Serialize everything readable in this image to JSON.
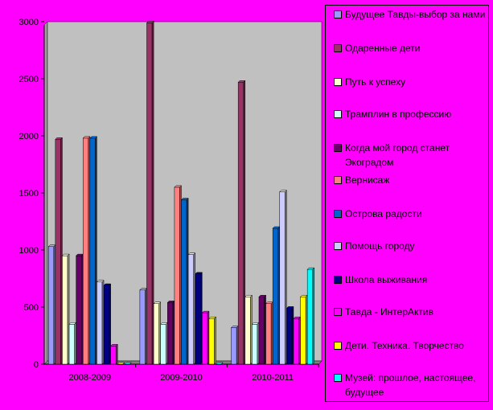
{
  "chart_data": {
    "type": "bar",
    "title": "",
    "xlabel": "",
    "ylabel": "",
    "ylim": [
      0,
      3000
    ],
    "yticks": [
      0,
      500,
      1000,
      1500,
      2000,
      2500,
      3000
    ],
    "grid": false,
    "legend_position": "right",
    "plot_background": "#c0c0c0",
    "page_background": "#ff00ff",
    "categories": [
      "2008-2009",
      "2009-2010",
      "2010-2011"
    ],
    "series": [
      {
        "name": "Будущее Тавды-выбор за нами",
        "color": "#9999ff",
        "values": [
          1030,
          650,
          320
        ]
      },
      {
        "name": "Одаренные дети",
        "color": "#993366",
        "values": [
          1970,
          2990,
          2470
        ]
      },
      {
        "name": "Путь к успеху",
        "color": "#ffffcc",
        "values": [
          950,
          530,
          590
        ]
      },
      {
        "name": "Трамплин в профессию",
        "color": "#ccffff",
        "values": [
          350,
          350,
          350
        ]
      },
      {
        "name": "Когда мой город станет Экоградом",
        "color": "#660066",
        "values": [
          950,
          540,
          590
        ]
      },
      {
        "name": "Вернисаж",
        "color": "#ff8080",
        "values": [
          1980,
          1550,
          530
        ]
      },
      {
        "name": "Острова радости",
        "color": "#0066cc",
        "values": [
          1980,
          1440,
          1190
        ]
      },
      {
        "name": "Помощь городу",
        "color": "#ccccff",
        "values": [
          720,
          960,
          1510
        ]
      },
      {
        "name": "Школа выживания",
        "color": "#000080",
        "values": [
          690,
          790,
          490
        ]
      },
      {
        "name": "Тавда - ИнтерАктив",
        "color": "#ff00ff",
        "values": [
          160,
          450,
          400
        ]
      },
      {
        "name": "Дети. Техника. Творчество",
        "color": "#ffff00",
        "values": [
          0,
          400,
          590
        ]
      },
      {
        "name": "Музей: прошлое, настоящее, будущее",
        "color": "#00ffff",
        "values": [
          0,
          0,
          830
        ]
      }
    ]
  }
}
